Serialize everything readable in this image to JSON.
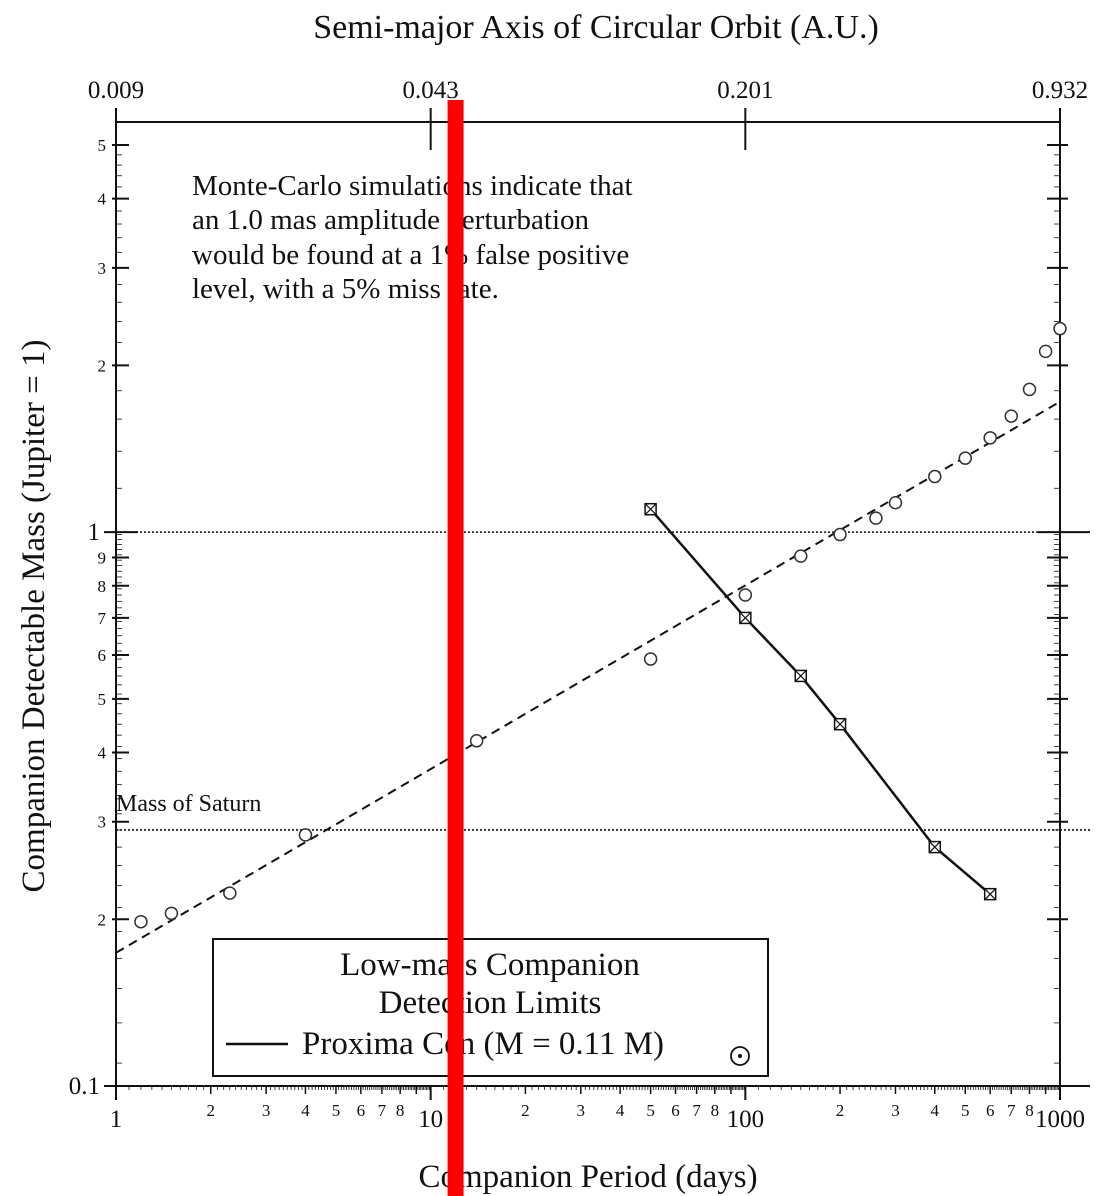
{
  "chart_data": {
    "type": "scatter",
    "title": "",
    "top_axis": {
      "label": "Semi-major Axis of Circular Orbit (A.U.)",
      "ticks": [
        {
          "period": 1,
          "label": "0.009"
        },
        {
          "period": 10,
          "label": "0.043"
        },
        {
          "period": 100,
          "label": "0.201"
        },
        {
          "period": 1000,
          "label": "0.932"
        }
      ]
    },
    "xlabel": "Companion Period (days)",
    "ylabel": "Companion Detectable Mass (Jupiter = 1)",
    "x_scale": "log",
    "y_scale": "log",
    "xlim": [
      1,
      1000
    ],
    "ylim": [
      0.1,
      5
    ],
    "x_major_labels": [
      {
        "v": 1,
        "t": "1"
      },
      {
        "v": 10,
        "t": "10"
      },
      {
        "v": 100,
        "t": "100"
      },
      {
        "v": 1000,
        "t": "1000"
      }
    ],
    "x_minor_labels": [
      {
        "v": 2,
        "t": "2"
      },
      {
        "v": 3,
        "t": "3"
      },
      {
        "v": 4,
        "t": "4"
      },
      {
        "v": 5,
        "t": "5"
      },
      {
        "v": 6,
        "t": "6"
      },
      {
        "v": 7,
        "t": "7"
      },
      {
        "v": 8,
        "t": "8"
      },
      {
        "v": 20,
        "t": "2"
      },
      {
        "v": 30,
        "t": "3"
      },
      {
        "v": 40,
        "t": "4"
      },
      {
        "v": 50,
        "t": "5"
      },
      {
        "v": 60,
        "t": "6"
      },
      {
        "v": 70,
        "t": "7"
      },
      {
        "v": 80,
        "t": "8"
      },
      {
        "v": 200,
        "t": "2"
      },
      {
        "v": 300,
        "t": "3"
      },
      {
        "v": 400,
        "t": "4"
      },
      {
        "v": 500,
        "t": "5"
      },
      {
        "v": 600,
        "t": "6"
      },
      {
        "v": 700,
        "t": "7"
      },
      {
        "v": 800,
        "t": "8"
      }
    ],
    "y_labels": [
      {
        "v": 0.1,
        "t": "0.1"
      },
      {
        "v": 0.2,
        "t": "2"
      },
      {
        "v": 0.3,
        "t": "3"
      },
      {
        "v": 0.4,
        "t": "4"
      },
      {
        "v": 0.5,
        "t": "5"
      },
      {
        "v": 0.6,
        "t": "6"
      },
      {
        "v": 0.7,
        "t": "7"
      },
      {
        "v": 0.8,
        "t": "8"
      },
      {
        "v": 0.9,
        "t": "9"
      },
      {
        "v": 1,
        "t": "1"
      },
      {
        "v": 2,
        "t": "2"
      },
      {
        "v": 3,
        "t": "3"
      },
      {
        "v": 4,
        "t": "4"
      },
      {
        "v": 5,
        "t": "5"
      }
    ],
    "horizontal_lines": [
      {
        "y": 1.0,
        "label": ""
      },
      {
        "y": 0.29,
        "label": "Mass of Saturn"
      }
    ],
    "series": [
      {
        "marker": "circle",
        "points": [
          {
            "x": 1.2,
            "y": 0.198
          },
          {
            "x": 1.5,
            "y": 0.205
          },
          {
            "x": 2.3,
            "y": 0.223
          },
          {
            "x": 4.0,
            "y": 0.284
          },
          {
            "x": 14,
            "y": 0.42
          },
          {
            "x": 50,
            "y": 0.59
          },
          {
            "x": 100,
            "y": 0.77
          },
          {
            "x": 150,
            "y": 0.905
          },
          {
            "x": 200,
            "y": 0.99
          },
          {
            "x": 260,
            "y": 1.06
          },
          {
            "x": 300,
            "y": 1.13
          },
          {
            "x": 400,
            "y": 1.26
          },
          {
            "x": 500,
            "y": 1.36
          },
          {
            "x": 600,
            "y": 1.48
          },
          {
            "x": 700,
            "y": 1.62
          },
          {
            "x": 800,
            "y": 1.81
          },
          {
            "x": 900,
            "y": 2.12
          },
          {
            "x": 1000,
            "y": 2.33
          }
        ]
      },
      {
        "marker": "dashed-fit",
        "line": [
          {
            "x": 1,
            "y": 0.174
          },
          {
            "x": 1000,
            "y": 1.72
          }
        ]
      },
      {
        "name": "Proxima Cen  (M = 0.11 M⊙)",
        "marker": "boxed-x",
        "line_style": "solid",
        "points": [
          {
            "x": 50,
            "y": 1.1
          },
          {
            "x": 100,
            "y": 0.7
          },
          {
            "x": 150,
            "y": 0.55
          },
          {
            "x": 200,
            "y": 0.45
          },
          {
            "x": 400,
            "y": 0.27
          },
          {
            "x": 600,
            "y": 0.222
          }
        ]
      }
    ],
    "annotation": [
      "Monte-Carlo simulations indicate that",
      "an 1.0 mas amplitude perturbation",
      "would be found at a 1% false positive",
      "level, with a 5% miss rate."
    ],
    "legend": {
      "placement": "bottom-center",
      "title_lines": [
        "Low-mass Companion",
        "Detection Limits"
      ],
      "entry": "Proxima Cen  (M = 0.11 M",
      "entry_suffix": ")"
    },
    "overlay": {
      "type": "vertical-bar",
      "x": 12,
      "color": "#ff0000"
    }
  }
}
